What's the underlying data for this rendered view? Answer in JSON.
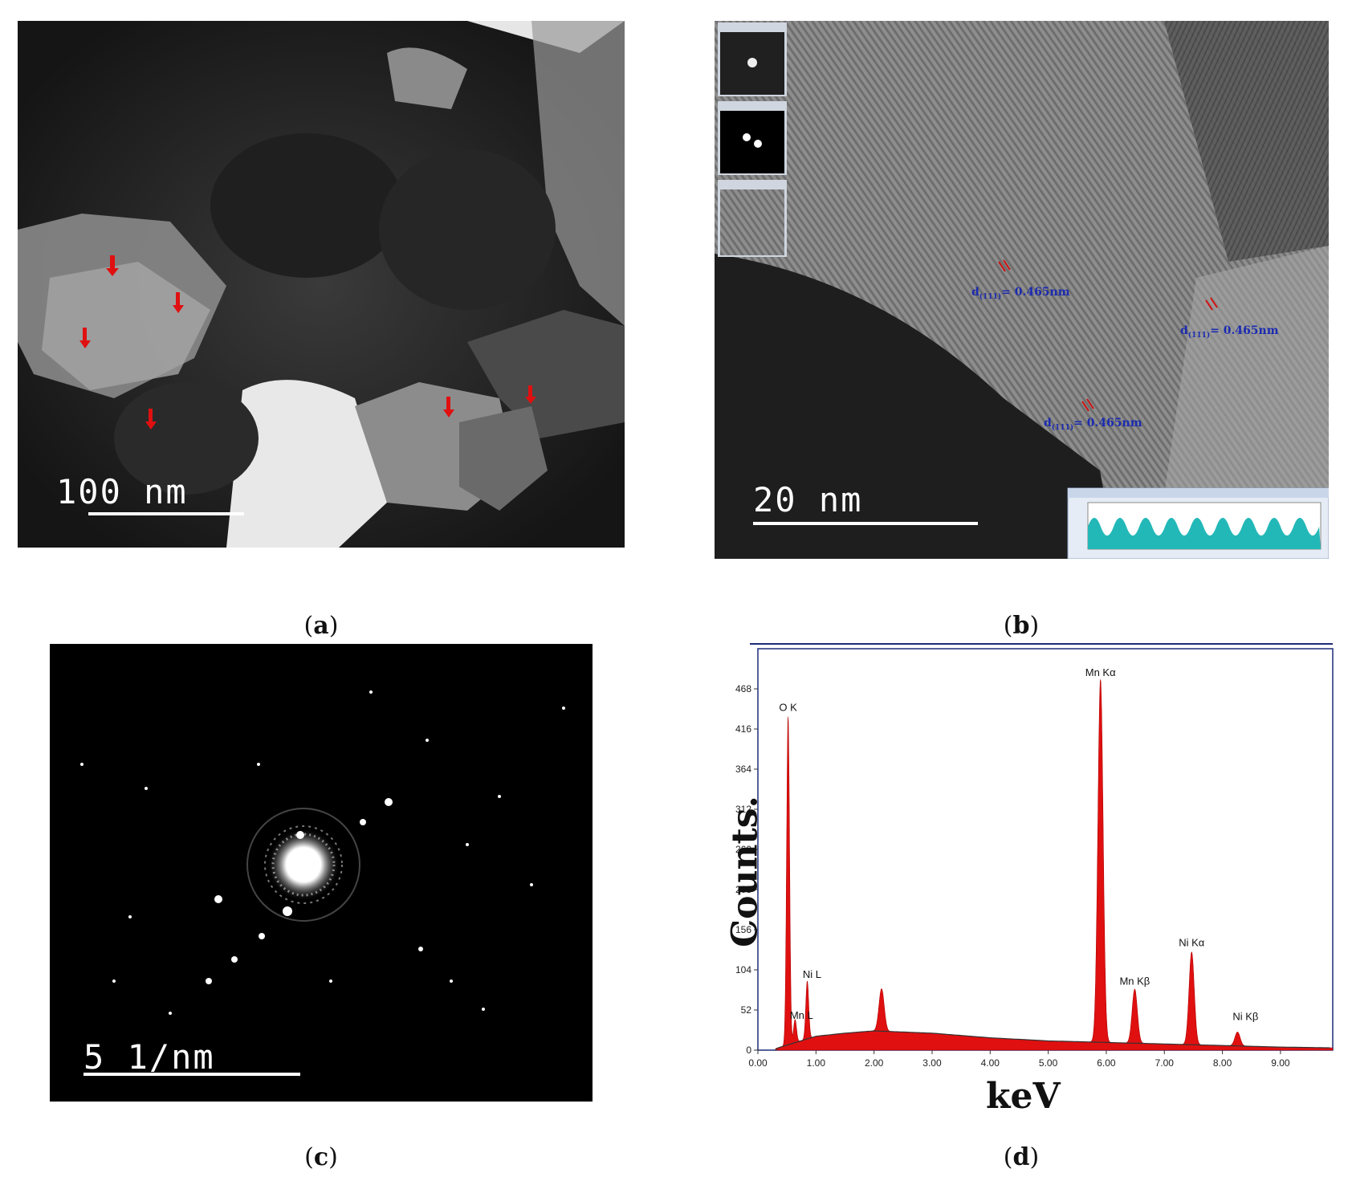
{
  "panels": {
    "a": {
      "caption_letter": "a",
      "scale_label": "100 nm"
    },
    "b": {
      "caption_letter": "b",
      "scale_label": "20 nm",
      "lattice_labels": [
        {
          "d": "d",
          "hkl": "(111)",
          "value": "= 0.465nm"
        },
        {
          "d": "d",
          "hkl": "(111)",
          "value": "= 0.465nm"
        },
        {
          "d": "d",
          "hkl": "(111)",
          "value": "= 0.465nm"
        }
      ]
    },
    "c": {
      "caption_letter": "c",
      "scale_label": "5 1/nm"
    },
    "d": {
      "caption_letter": "d"
    }
  },
  "chart_data": {
    "type": "line",
    "xlabel": "keV",
    "ylabel": "Counts.",
    "xlim": [
      0,
      9.9
    ],
    "ylim": [
      0,
      520
    ],
    "xticks": [
      "0.00",
      "1.00",
      "2.00",
      "3.00",
      "4.00",
      "5.00",
      "6.00",
      "7.00",
      "8.00",
      "9.00"
    ],
    "yticks": [
      "0",
      "52",
      "104",
      "156",
      "208",
      "260",
      "312",
      "364",
      "416",
      "468"
    ],
    "peaks": [
      {
        "label": "O K",
        "x": 0.52,
        "y": 425
      },
      {
        "label": "Mn L",
        "x": 0.64,
        "y": 30
      },
      {
        "label": "Ni L",
        "x": 0.85,
        "y": 75
      },
      {
        "label": "Mn Kα",
        "x": 5.9,
        "y": 470
      },
      {
        "label": "Mn Kβ",
        "x": 6.49,
        "y": 70
      },
      {
        "label": "Ni Kα",
        "x": 7.47,
        "y": 120
      },
      {
        "label": "Ni Kβ",
        "x": 8.26,
        "y": 18
      }
    ],
    "minor_peaks": [
      {
        "x": 2.13,
        "y": 55
      }
    ],
    "background": [
      [
        0.3,
        2
      ],
      [
        1.0,
        18
      ],
      [
        1.5,
        22
      ],
      [
        2.0,
        25
      ],
      [
        3.0,
        22
      ],
      [
        4.0,
        16
      ],
      [
        5.0,
        12
      ],
      [
        6.0,
        10
      ],
      [
        7.0,
        8
      ],
      [
        8.0,
        6
      ],
      [
        9.0,
        4
      ],
      [
        9.9,
        3
      ]
    ]
  }
}
